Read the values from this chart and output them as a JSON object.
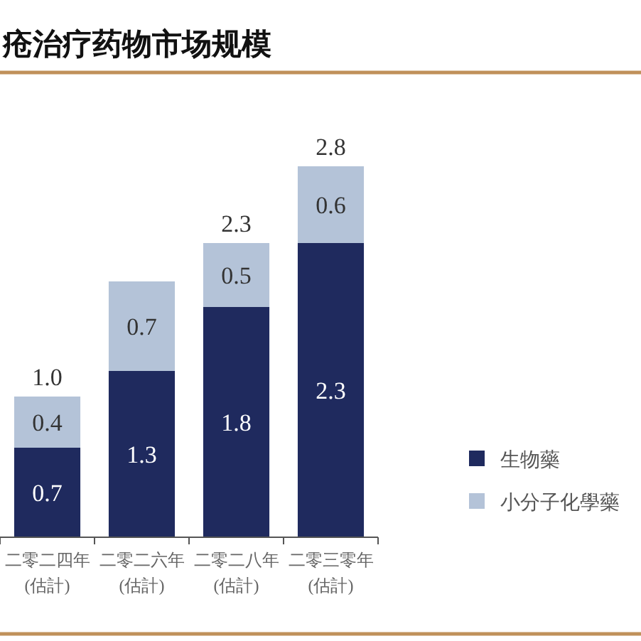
{
  "chart_data": {
    "type": "bar",
    "title": "疮治疗药物市场规模",
    "stacked": true,
    "categories": [
      "二零二四年\n(估計)",
      "二零二六年\n(估計)",
      "二零二八年\n(估計)",
      "二零三零年\n(估計)"
    ],
    "series": [
      {
        "name": "生物藥",
        "color": "#1f2a5e",
        "values": [
          0.7,
          1.3,
          1.8,
          2.3
        ]
      },
      {
        "name": "小分子化學藥",
        "color": "#b4c3d8",
        "values": [
          0.4,
          0.7,
          0.5,
          0.6
        ]
      }
    ],
    "data_labels": true,
    "totals": [
      "1.0",
      null,
      "2.3",
      "2.8"
    ],
    "legend": "right"
  }
}
